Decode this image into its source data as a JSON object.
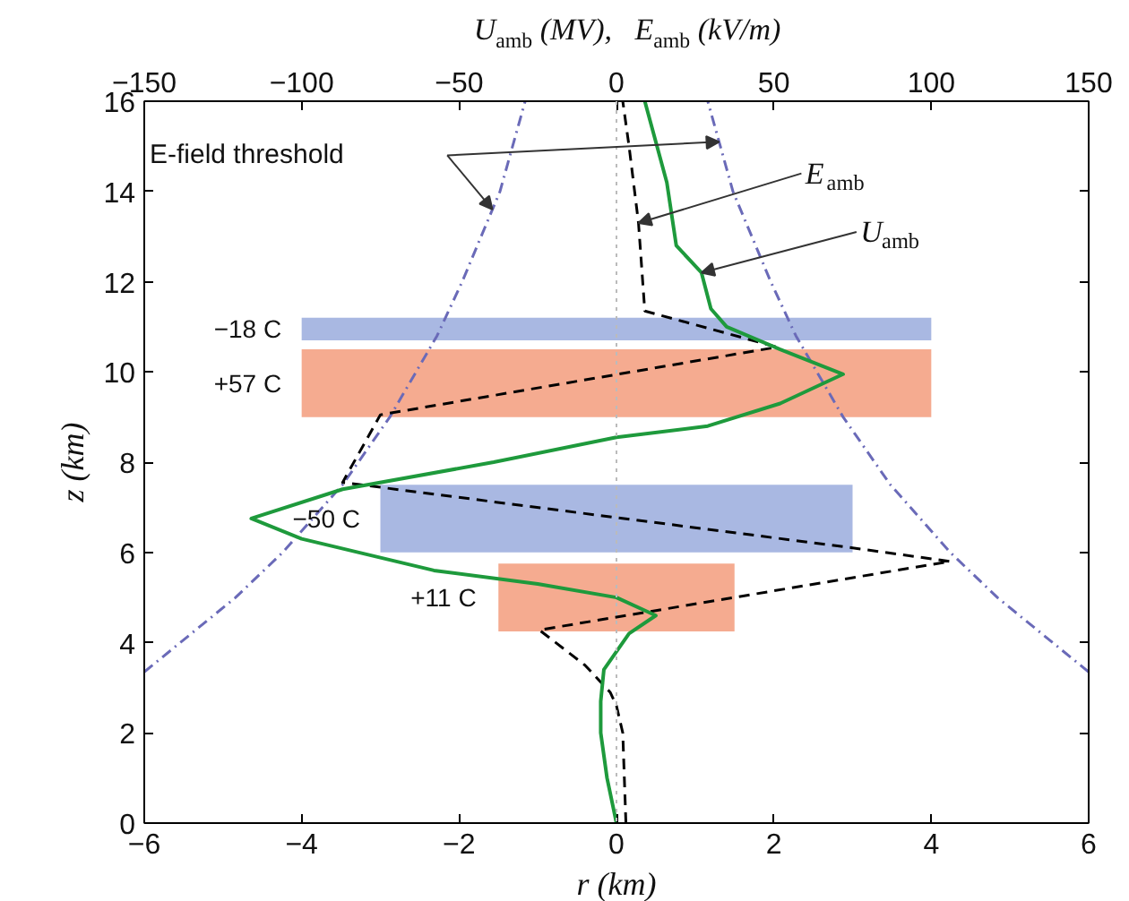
{
  "chart_data": {
    "type": "line",
    "xlabel": "r (km)",
    "ylabel": "z (km)",
    "x2label": "U$_{amb}$ (MV),   E$_{amb}$ (kV/m)",
    "xlim": [
      -6,
      6
    ],
    "xticks": [
      -6,
      -4,
      -2,
      0,
      2,
      4,
      6
    ],
    "x2lim": [
      -150,
      150
    ],
    "x2ticks": [
      -150,
      -100,
      -50,
      0,
      50,
      100,
      150
    ],
    "ylim": [
      0,
      16
    ],
    "yticks": [
      0,
      2,
      4,
      6,
      8,
      10,
      12,
      14,
      16
    ],
    "grid": false,
    "series": [
      {
        "type": "area",
        "color": "#a9b8e2",
        "x": [
          -4,
          4,
          4,
          -4
        ],
        "values": [
          10.7,
          10.7,
          11.2,
          11.2
        ]
      },
      {
        "type": "area",
        "color": "#f5ab90",
        "x": [
          -4,
          4,
          4,
          -4
        ],
        "values": [
          9.0,
          9.0,
          10.5,
          10.5
        ]
      },
      {
        "type": "area",
        "color": "#a9b8e2",
        "x": [
          -3,
          3,
          3,
          -3
        ],
        "values": [
          6.0,
          6.0,
          7.5,
          7.5
        ]
      },
      {
        "type": "area",
        "color": "#f5ab90",
        "x": [
          -1.5,
          1.5,
          1.5,
          -1.5
        ],
        "values": [
          4.25,
          4.25,
          5.75,
          5.75
        ]
      },
      {
        "axis": "x2",
        "color": "#6a6ab8",
        "line_style": "dashdot",
        "x": [
          150,
          121,
          106,
          87,
          72,
          57,
          49,
          37,
          29
        ],
        "values": [
          3.35,
          5,
          6,
          7.5,
          9,
          10.8,
          12,
          14,
          16
        ]
      },
      {
        "axis": "x2",
        "color": "#6a6ab8",
        "line_style": "dashdot",
        "x": [
          -150,
          -121,
          -106,
          -87,
          -72,
          -57,
          -49,
          -37,
          -29
        ],
        "values": [
          3.35,
          5,
          6,
          7.5,
          9,
          10.8,
          12,
          14,
          16
        ]
      },
      {
        "axis": "x2",
        "color": "#000000",
        "line_style": "dashed",
        "x": [
          3,
          2,
          0,
          -2,
          -10,
          -24.5,
          106,
          75,
          -87,
          -75,
          51,
          9,
          7,
          4,
          2
        ],
        "values": [
          0,
          2,
          2.6,
          2.9,
          3.5,
          4.28,
          5.8,
          6.1,
          7.55,
          9.05,
          10.55,
          11.35,
          13.3,
          15,
          16
        ]
      },
      {
        "axis": "x2",
        "color": "#1e9a3c",
        "line_style": "solid",
        "x": [
          0,
          -3,
          -5,
          -5,
          -4,
          4,
          12.5,
          0,
          -25,
          -58,
          -100,
          -116,
          -87,
          -39,
          0,
          29,
          52,
          72,
          52,
          35,
          30,
          27,
          19,
          16,
          9
        ],
        "values": [
          0,
          1,
          2,
          2.7,
          3.4,
          4.2,
          4.6,
          5.0,
          5.3,
          5.6,
          6.3,
          6.75,
          7.4,
          8.0,
          8.55,
          8.8,
          9.3,
          9.95,
          10.5,
          11.0,
          11.4,
          12.2,
          12.8,
          14.2,
          16
        ]
      }
    ],
    "ref_lines": [
      {
        "axis": "x",
        "value": 0,
        "color": "#bbbbbb",
        "line_style": "dotted"
      }
    ],
    "annotations": [
      {
        "text": "−18 C",
        "x": -4,
        "y": 10.95
      },
      {
        "text": "+57 C",
        "x": -4,
        "y": 9.75
      },
      {
        "text": "−50 C",
        "x": -3,
        "y": 6.75
      },
      {
        "text": "+11 C",
        "x": -1.5,
        "y": 5.0
      },
      "E-field threshold",
      {
        "text": "E$_{amb}$",
        "x": 0.28,
        "y": 13.3
      },
      {
        "text": "U$_{amb}$",
        "x": 1.08,
        "y": 12.2
      }
    ]
  }
}
